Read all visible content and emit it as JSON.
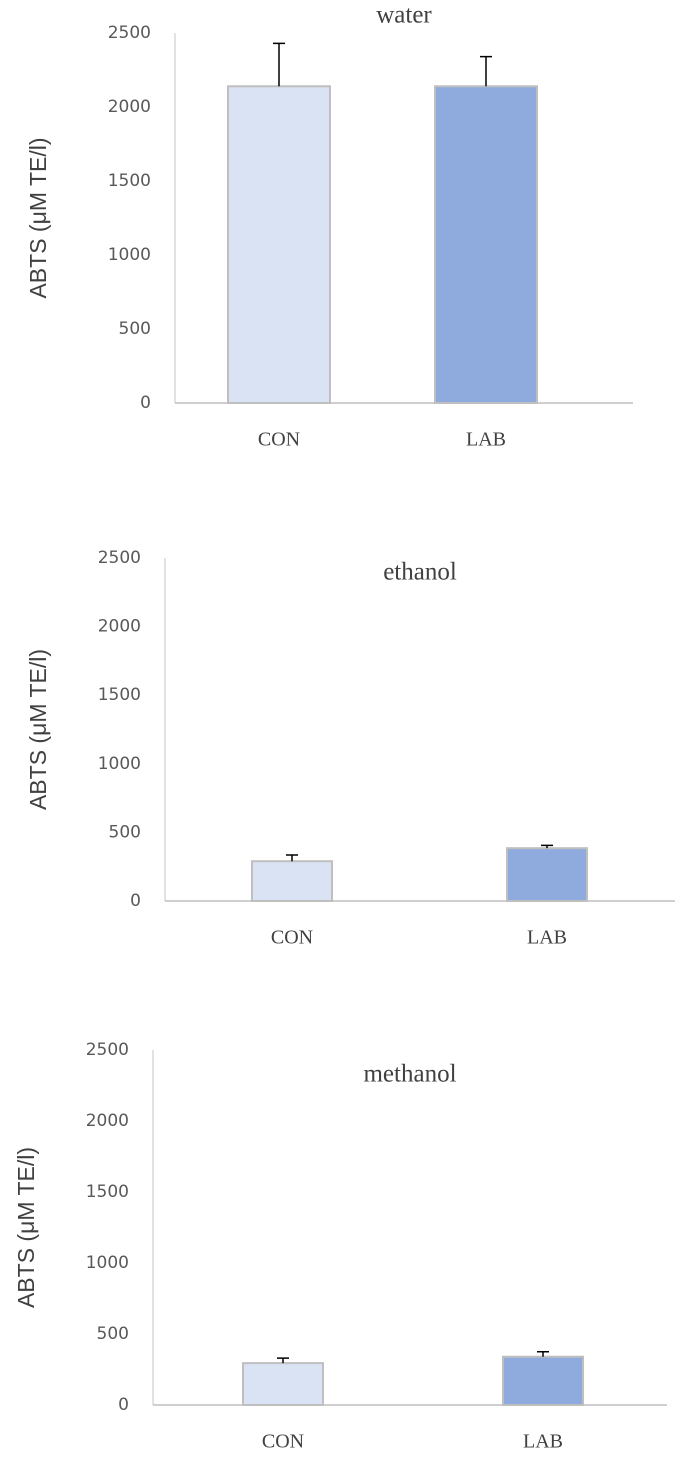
{
  "chart_data": [
    {
      "type": "bar",
      "title": "water",
      "y_label": "ABTS (μM TE/l)",
      "categories": [
        "CON",
        "LAB"
      ],
      "values": [
        2140,
        2140
      ],
      "errors": [
        290,
        200
      ],
      "colors": [
        "#dae3f3",
        "#8faadc"
      ],
      "ylim": [
        0,
        2500
      ],
      "yticks": [
        0,
        500,
        1000,
        1500,
        2000,
        2500
      ]
    },
    {
      "type": "bar",
      "title": "ethanol",
      "y_label": "ABTS (μM TE/l)",
      "categories": [
        "CON",
        "LAB"
      ],
      "values": [
        290,
        385
      ],
      "errors": [
        45,
        20
      ],
      "colors": [
        "#dae3f3",
        "#8faadc"
      ],
      "ylim": [
        0,
        2500
      ],
      "yticks": [
        0,
        500,
        1000,
        1500,
        2000,
        2500
      ]
    },
    {
      "type": "bar",
      "title": "methanol",
      "y_label": "ABTS (μM TE/l)",
      "categories": [
        "CON",
        "LAB"
      ],
      "values": [
        295,
        340
      ],
      "errors": [
        35,
        35
      ],
      "colors": [
        "#dae3f3",
        "#8faadc"
      ],
      "ylim": [
        0,
        2500
      ],
      "yticks": [
        0,
        500,
        1000,
        1500,
        2000,
        2500
      ]
    }
  ]
}
